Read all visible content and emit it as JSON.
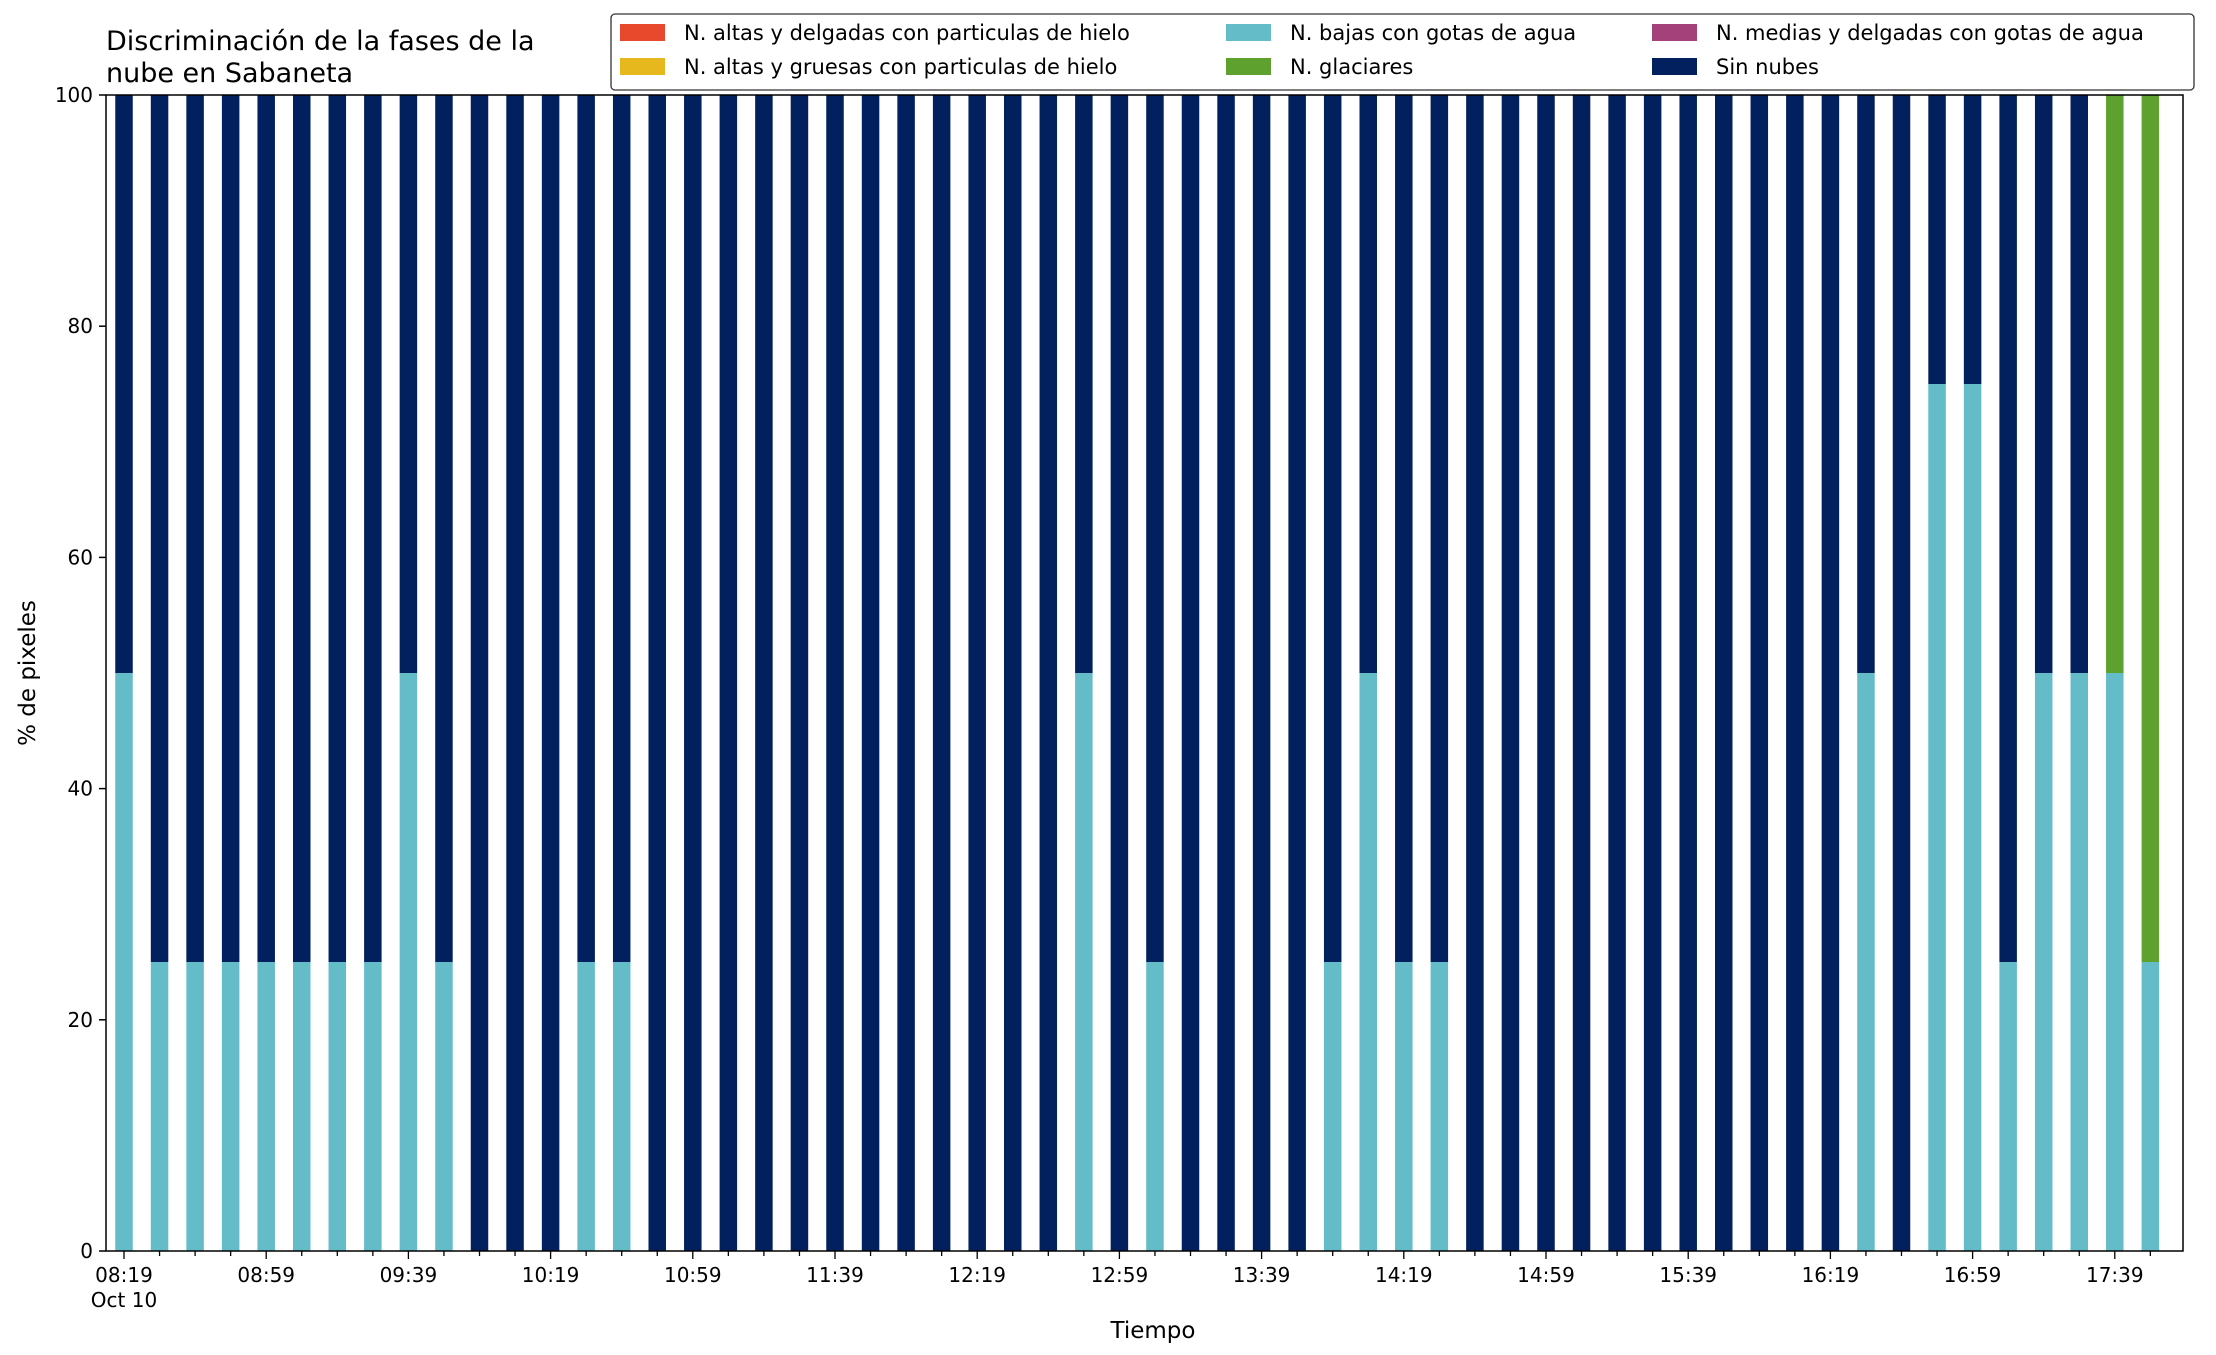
{
  "chart_data": {
    "type": "bar",
    "stacked": true,
    "title": "Discriminación de la fases de la\nnube en Sabaneta",
    "xlabel": "Tiempo",
    "ylabel": "% de pixeles",
    "ylim": [
      0,
      100
    ],
    "yticks": [
      0,
      20,
      40,
      60,
      80,
      100
    ],
    "grid": false,
    "legend_position": "top-right",
    "legend_columns": 3,
    "x_tick_labels": [
      {
        "index": 0,
        "label": "08:19",
        "sublabel": "Oct 10"
      },
      {
        "index": 4,
        "label": "08:59"
      },
      {
        "index": 8,
        "label": "09:39"
      },
      {
        "index": 12,
        "label": "10:19"
      },
      {
        "index": 16,
        "label": "10:59"
      },
      {
        "index": 20,
        "label": "11:39"
      },
      {
        "index": 24,
        "label": "12:19"
      },
      {
        "index": 28,
        "label": "12:59"
      },
      {
        "index": 32,
        "label": "13:39"
      },
      {
        "index": 36,
        "label": "14:19"
      },
      {
        "index": 40,
        "label": "14:59"
      },
      {
        "index": 44,
        "label": "15:39"
      },
      {
        "index": 48,
        "label": "16:19"
      },
      {
        "index": 52,
        "label": "16:59"
      },
      {
        "index": 56,
        "label": "17:39"
      }
    ],
    "x": [
      "08:19",
      "08:29",
      "08:39",
      "08:49",
      "08:59",
      "09:09",
      "09:19",
      "09:29",
      "09:39",
      "09:49",
      "09:59",
      "10:09",
      "10:19",
      "10:29",
      "10:39",
      "10:49",
      "10:59",
      "11:09",
      "11:19",
      "11:29",
      "11:39",
      "11:49",
      "11:59",
      "12:09",
      "12:19",
      "12:29",
      "12:39",
      "12:49",
      "12:59",
      "13:09",
      "13:19",
      "13:29",
      "13:39",
      "13:49",
      "13:59",
      "14:09",
      "14:19",
      "14:29",
      "14:39",
      "14:49",
      "14:59",
      "15:09",
      "15:19",
      "15:29",
      "15:39",
      "15:49",
      "15:59",
      "16:09",
      "16:19",
      "16:29",
      "16:39",
      "16:49",
      "16:59",
      "17:09",
      "17:19",
      "17:29",
      "17:39",
      "17:49"
    ],
    "series": [
      {
        "name": "N. altas y delgadas con particulas de hielo",
        "color": "#e8482c",
        "values": [
          0,
          0,
          0,
          0,
          0,
          0,
          0,
          0,
          0,
          0,
          0,
          0,
          0,
          0,
          0,
          0,
          0,
          0,
          0,
          0,
          0,
          0,
          0,
          0,
          0,
          0,
          0,
          0,
          0,
          0,
          0,
          0,
          0,
          0,
          0,
          0,
          0,
          0,
          0,
          0,
          0,
          0,
          0,
          0,
          0,
          0,
          0,
          0,
          0,
          0,
          0,
          0,
          0,
          0,
          0,
          0,
          0,
          0
        ]
      },
      {
        "name": "N. altas y gruesas con particulas de hielo",
        "color": "#e6b81e",
        "values": [
          0,
          0,
          0,
          0,
          0,
          0,
          0,
          0,
          0,
          0,
          0,
          0,
          0,
          0,
          0,
          0,
          0,
          0,
          0,
          0,
          0,
          0,
          0,
          0,
          0,
          0,
          0,
          0,
          0,
          0,
          0,
          0,
          0,
          0,
          0,
          0,
          0,
          0,
          0,
          0,
          0,
          0,
          0,
          0,
          0,
          0,
          0,
          0,
          0,
          0,
          0,
          0,
          0,
          0,
          0,
          0,
          0,
          0
        ]
      },
      {
        "name": "N. bajas con gotas de agua",
        "color": "#64bcc8",
        "values": [
          50,
          25,
          25,
          25,
          25,
          25,
          25,
          25,
          50,
          25,
          0,
          0,
          0,
          25,
          25,
          0,
          0,
          0,
          0,
          0,
          0,
          0,
          0,
          0,
          0,
          0,
          0,
          50,
          0,
          25,
          0,
          0,
          0,
          0,
          25,
          50,
          25,
          25,
          0,
          0,
          0,
          0,
          0,
          0,
          0,
          0,
          0,
          0,
          0,
          50,
          0,
          75,
          75,
          25,
          50,
          50,
          50,
          25
        ]
      },
      {
        "name": "N. glaciares",
        "color": "#5ea12f",
        "values": [
          0,
          0,
          0,
          0,
          0,
          0,
          0,
          0,
          0,
          0,
          0,
          0,
          0,
          0,
          0,
          0,
          0,
          0,
          0,
          0,
          0,
          0,
          0,
          0,
          0,
          0,
          0,
          0,
          0,
          0,
          0,
          0,
          0,
          0,
          0,
          0,
          0,
          0,
          0,
          0,
          0,
          0,
          0,
          0,
          0,
          0,
          0,
          0,
          0,
          0,
          0,
          0,
          0,
          0,
          0,
          0,
          50,
          75
        ]
      },
      {
        "name": "N. medias y delgadas con gotas de agua",
        "color": "#a4407a",
        "values": [
          0,
          0,
          0,
          0,
          0,
          0,
          0,
          0,
          0,
          0,
          0,
          0,
          0,
          0,
          0,
          0,
          0,
          0,
          0,
          0,
          0,
          0,
          0,
          0,
          0,
          0,
          0,
          0,
          0,
          0,
          0,
          0,
          0,
          0,
          0,
          0,
          0,
          0,
          0,
          0,
          0,
          0,
          0,
          0,
          0,
          0,
          0,
          0,
          0,
          0,
          0,
          0,
          0,
          0,
          0,
          0,
          0,
          0
        ]
      },
      {
        "name": "Sin nubes",
        "color": "#021f5e",
        "values": [
          50,
          75,
          75,
          75,
          75,
          75,
          75,
          75,
          50,
          75,
          100,
          100,
          100,
          75,
          75,
          100,
          100,
          100,
          100,
          100,
          100,
          100,
          100,
          100,
          100,
          100,
          100,
          50,
          100,
          75,
          100,
          100,
          100,
          100,
          75,
          50,
          75,
          75,
          100,
          100,
          100,
          100,
          100,
          100,
          100,
          100,
          100,
          100,
          100,
          50,
          100,
          25,
          25,
          75,
          50,
          50,
          0,
          0
        ]
      }
    ],
    "stack_order": [
      "N. bajas con gotas de agua",
      "N. glaciares",
      "Sin nubes"
    ],
    "legend_order": [
      "N. altas y delgadas con particulas de hielo",
      "N. altas y gruesas con particulas de hielo",
      "N. bajas con gotas de agua",
      "N. glaciares",
      "N. medias y delgadas con gotas de agua",
      "Sin nubes"
    ]
  }
}
